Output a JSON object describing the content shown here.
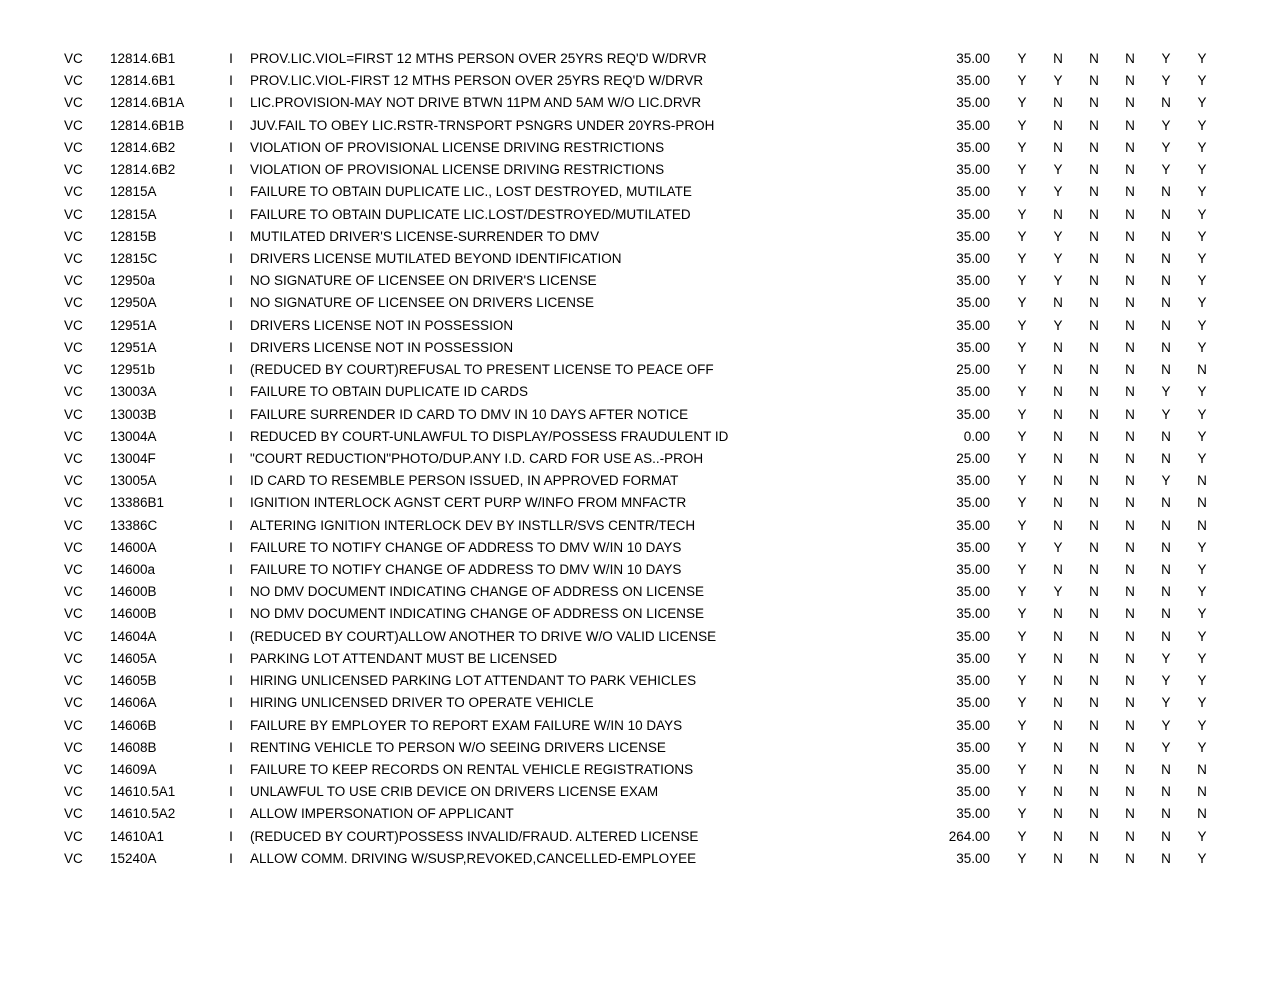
{
  "table": {
    "font_family": "Arial",
    "font_size_pt": 10,
    "text_color": "#000000",
    "background_color": "#ffffff",
    "columns": [
      "statute",
      "section",
      "class",
      "description",
      "amount",
      "f1",
      "f2",
      "f3",
      "f4",
      "f5",
      "f6"
    ],
    "rows": [
      {
        "statute": "VC",
        "section": "12814.6B1",
        "class": "I",
        "description": "PROV.LIC.VIOL=FIRST 12 MTHS PERSON OVER 25YRS REQ'D W/DRVR",
        "amount": "35.00",
        "f1": "Y",
        "f2": "N",
        "f3": "N",
        "f4": "N",
        "f5": "Y",
        "f6": "Y"
      },
      {
        "statute": "VC",
        "section": "12814.6B1",
        "class": "I",
        "description": "PROV.LIC.VIOL-FIRST 12 MTHS PERSON OVER 25YRS REQ'D W/DRVR",
        "amount": "35.00",
        "f1": "Y",
        "f2": "Y",
        "f3": "N",
        "f4": "N",
        "f5": "Y",
        "f6": "Y"
      },
      {
        "statute": "VC",
        "section": "12814.6B1A",
        "class": "I",
        "description": "LIC.PROVISION-MAY NOT DRIVE BTWN 11PM AND 5AM W/O LIC.DRVR",
        "amount": "35.00",
        "f1": "Y",
        "f2": "N",
        "f3": "N",
        "f4": "N",
        "f5": "N",
        "f6": "Y"
      },
      {
        "statute": "VC",
        "section": "12814.6B1B",
        "class": "I",
        "description": "JUV.FAIL TO OBEY LIC.RSTR-TRNSPORT PSNGRS UNDER 20YRS-PROH",
        "amount": "35.00",
        "f1": "Y",
        "f2": "N",
        "f3": "N",
        "f4": "N",
        "f5": "Y",
        "f6": "Y"
      },
      {
        "statute": "VC",
        "section": "12814.6B2",
        "class": "I",
        "description": "VIOLATION OF PROVISIONAL LICENSE DRIVING RESTRICTIONS",
        "amount": "35.00",
        "f1": "Y",
        "f2": "N",
        "f3": "N",
        "f4": "N",
        "f5": "Y",
        "f6": "Y"
      },
      {
        "statute": "VC",
        "section": "12814.6B2",
        "class": "I",
        "description": "VIOLATION OF PROVISIONAL LICENSE DRIVING RESTRICTIONS",
        "amount": "35.00",
        "f1": "Y",
        "f2": "Y",
        "f3": "N",
        "f4": "N",
        "f5": "Y",
        "f6": "Y"
      },
      {
        "statute": "VC",
        "section": "12815A",
        "class": "I",
        "description": "FAILURE TO OBTAIN DUPLICATE LIC., LOST DESTROYED, MUTILATE",
        "amount": "35.00",
        "f1": "Y",
        "f2": "Y",
        "f3": "N",
        "f4": "N",
        "f5": "N",
        "f6": "Y"
      },
      {
        "statute": "VC",
        "section": "12815A",
        "class": "I",
        "description": "FAILURE TO OBTAIN DUPLICATE LIC.LOST/DESTROYED/MUTILATED",
        "amount": "35.00",
        "f1": "Y",
        "f2": "N",
        "f3": "N",
        "f4": "N",
        "f5": "N",
        "f6": "Y"
      },
      {
        "statute": "VC",
        "section": "12815B",
        "class": "I",
        "description": "MUTILATED DRIVER'S LICENSE-SURRENDER TO DMV",
        "amount": "35.00",
        "f1": "Y",
        "f2": "Y",
        "f3": "N",
        "f4": "N",
        "f5": "N",
        "f6": "Y"
      },
      {
        "statute": "VC",
        "section": "12815C",
        "class": "I",
        "description": "DRIVERS LICENSE MUTILATED BEYOND IDENTIFICATION",
        "amount": "35.00",
        "f1": "Y",
        "f2": "Y",
        "f3": "N",
        "f4": "N",
        "f5": "N",
        "f6": "Y"
      },
      {
        "statute": "VC",
        "section": "12950a",
        "class": "I",
        "description": "NO SIGNATURE OF LICENSEE ON DRIVER'S LICENSE",
        "amount": "35.00",
        "f1": "Y",
        "f2": "Y",
        "f3": "N",
        "f4": "N",
        "f5": "N",
        "f6": "Y"
      },
      {
        "statute": "VC",
        "section": "12950A",
        "class": "I",
        "description": "NO SIGNATURE OF LICENSEE ON DRIVERS LICENSE",
        "amount": "35.00",
        "f1": "Y",
        "f2": "N",
        "f3": "N",
        "f4": "N",
        "f5": "N",
        "f6": "Y"
      },
      {
        "statute": "VC",
        "section": "12951A",
        "class": "I",
        "description": "DRIVERS LICENSE NOT IN POSSESSION",
        "amount": "35.00",
        "f1": "Y",
        "f2": "Y",
        "f3": "N",
        "f4": "N",
        "f5": "N",
        "f6": "Y"
      },
      {
        "statute": "VC",
        "section": "12951A",
        "class": "I",
        "description": "DRIVERS LICENSE NOT IN POSSESSION",
        "amount": "35.00",
        "f1": "Y",
        "f2": "N",
        "f3": "N",
        "f4": "N",
        "f5": "N",
        "f6": "Y"
      },
      {
        "statute": "VC",
        "section": "12951b",
        "class": "I",
        "description": "(REDUCED BY COURT)REFUSAL TO PRESENT LICENSE TO PEACE OFF",
        "amount": "25.00",
        "f1": "Y",
        "f2": "N",
        "f3": "N",
        "f4": "N",
        "f5": "N",
        "f6": "N"
      },
      {
        "statute": "VC",
        "section": "13003A",
        "class": "I",
        "description": "FAILURE TO OBTAIN DUPLICATE ID CARDS",
        "amount": "35.00",
        "f1": "Y",
        "f2": "N",
        "f3": "N",
        "f4": "N",
        "f5": "Y",
        "f6": "Y"
      },
      {
        "statute": "VC",
        "section": "13003B",
        "class": "I",
        "description": "FAILURE SURRENDER ID CARD TO DMV IN 10 DAYS AFTER NOTICE",
        "amount": "35.00",
        "f1": "Y",
        "f2": "N",
        "f3": "N",
        "f4": "N",
        "f5": "Y",
        "f6": "Y"
      },
      {
        "statute": "VC",
        "section": "13004A",
        "class": "I",
        "description": "REDUCED BY COURT-UNLAWFUL TO DISPLAY/POSSESS FRAUDULENT ID",
        "amount": "0.00",
        "f1": "Y",
        "f2": "N",
        "f3": "N",
        "f4": "N",
        "f5": "N",
        "f6": "Y"
      },
      {
        "statute": "VC",
        "section": "13004F",
        "class": "I",
        "description": "\"COURT REDUCTION\"PHOTO/DUP.ANY I.D. CARD FOR USE AS..-PROH",
        "amount": "25.00",
        "f1": "Y",
        "f2": "N",
        "f3": "N",
        "f4": "N",
        "f5": "N",
        "f6": "Y"
      },
      {
        "statute": "VC",
        "section": "13005A",
        "class": "I",
        "description": "ID CARD TO RESEMBLE PERSON ISSUED, IN APPROVED FORMAT",
        "amount": "35.00",
        "f1": "Y",
        "f2": "N",
        "f3": "N",
        "f4": "N",
        "f5": "Y",
        "f6": "N"
      },
      {
        "statute": "VC",
        "section": "13386B1",
        "class": "I",
        "description": "IGNITION INTERLOCK AGNST CERT PURP W/INFO FROM MNFACTR",
        "amount": "35.00",
        "f1": "Y",
        "f2": "N",
        "f3": "N",
        "f4": "N",
        "f5": "N",
        "f6": "N"
      },
      {
        "statute": "VC",
        "section": "13386C",
        "class": "I",
        "description": "ALTERING IGNITION INTERLOCK DEV BY INSTLLR/SVS CENTR/TECH",
        "amount": "35.00",
        "f1": "Y",
        "f2": "N",
        "f3": "N",
        "f4": "N",
        "f5": "N",
        "f6": "N"
      },
      {
        "statute": "VC",
        "section": "14600A",
        "class": "I",
        "description": "FAILURE TO NOTIFY CHANGE OF ADDRESS TO DMV W/IN 10 DAYS",
        "amount": "35.00",
        "f1": "Y",
        "f2": "Y",
        "f3": "N",
        "f4": "N",
        "f5": "N",
        "f6": "Y"
      },
      {
        "statute": "VC",
        "section": "14600a",
        "class": "I",
        "description": "FAILURE TO NOTIFY CHANGE OF ADDRESS TO DMV W/IN 10 DAYS",
        "amount": "35.00",
        "f1": "Y",
        "f2": "N",
        "f3": "N",
        "f4": "N",
        "f5": "N",
        "f6": "Y"
      },
      {
        "statute": "VC",
        "section": "14600B",
        "class": "I",
        "description": "NO DMV DOCUMENT INDICATING CHANGE OF ADDRESS ON LICENSE",
        "amount": "35.00",
        "f1": "Y",
        "f2": "Y",
        "f3": "N",
        "f4": "N",
        "f5": "N",
        "f6": "Y"
      },
      {
        "statute": "VC",
        "section": "14600B",
        "class": "I",
        "description": "NO DMV DOCUMENT INDICATING CHANGE OF ADDRESS ON LICENSE",
        "amount": "35.00",
        "f1": "Y",
        "f2": "N",
        "f3": "N",
        "f4": "N",
        "f5": "N",
        "f6": "Y"
      },
      {
        "statute": "VC",
        "section": "14604A",
        "class": "I",
        "description": "(REDUCED BY COURT)ALLOW ANOTHER TO DRIVE W/O VALID LICENSE",
        "amount": "35.00",
        "f1": "Y",
        "f2": "N",
        "f3": "N",
        "f4": "N",
        "f5": "N",
        "f6": "Y"
      },
      {
        "statute": "VC",
        "section": "14605A",
        "class": "I",
        "description": "PARKING LOT ATTENDANT MUST BE LICENSED",
        "amount": "35.00",
        "f1": "Y",
        "f2": "N",
        "f3": "N",
        "f4": "N",
        "f5": "Y",
        "f6": "Y"
      },
      {
        "statute": "VC",
        "section": "14605B",
        "class": "I",
        "description": "HIRING UNLICENSED PARKING LOT ATTENDANT TO PARK VEHICLES",
        "amount": "35.00",
        "f1": "Y",
        "f2": "N",
        "f3": "N",
        "f4": "N",
        "f5": "Y",
        "f6": "Y"
      },
      {
        "statute": "VC",
        "section": "14606A",
        "class": "I",
        "description": "HIRING UNLICENSED DRIVER TO OPERATE VEHICLE",
        "amount": "35.00",
        "f1": "Y",
        "f2": "N",
        "f3": "N",
        "f4": "N",
        "f5": "Y",
        "f6": "Y"
      },
      {
        "statute": "VC",
        "section": "14606B",
        "class": "I",
        "description": "FAILURE BY EMPLOYER TO REPORT EXAM FAILURE W/IN 10 DAYS",
        "amount": "35.00",
        "f1": "Y",
        "f2": "N",
        "f3": "N",
        "f4": "N",
        "f5": "Y",
        "f6": "Y"
      },
      {
        "statute": "VC",
        "section": "14608B",
        "class": "I",
        "description": "RENTING VEHICLE TO PERSON W/O SEEING DRIVERS LICENSE",
        "amount": "35.00",
        "f1": "Y",
        "f2": "N",
        "f3": "N",
        "f4": "N",
        "f5": "Y",
        "f6": "Y"
      },
      {
        "statute": "VC",
        "section": "14609A",
        "class": "I",
        "description": "FAILURE TO KEEP RECORDS ON RENTAL VEHICLE REGISTRATIONS",
        "amount": "35.00",
        "f1": "Y",
        "f2": "N",
        "f3": "N",
        "f4": "N",
        "f5": "N",
        "f6": "N"
      },
      {
        "statute": "VC",
        "section": "14610.5A1",
        "class": "I",
        "description": "UNLAWFUL TO USE CRIB DEVICE ON DRIVERS LICENSE EXAM",
        "amount": "35.00",
        "f1": "Y",
        "f2": "N",
        "f3": "N",
        "f4": "N",
        "f5": "N",
        "f6": "N"
      },
      {
        "statute": "VC",
        "section": "14610.5A2",
        "class": "I",
        "description": "ALLOW IMPERSONATION OF APPLICANT",
        "amount": "35.00",
        "f1": "Y",
        "f2": "N",
        "f3": "N",
        "f4": "N",
        "f5": "N",
        "f6": "N"
      },
      {
        "statute": "VC",
        "section": "14610A1",
        "class": "I",
        "description": "(REDUCED BY COURT)POSSESS INVALID/FRAUD. ALTERED LICENSE",
        "amount": "264.00",
        "f1": "Y",
        "f2": "N",
        "f3": "N",
        "f4": "N",
        "f5": "N",
        "f6": "Y"
      },
      {
        "statute": "VC",
        "section": "15240A",
        "class": "I",
        "description": "ALLOW COMM. DRIVING W/SUSP,REVOKED,CANCELLED-EMPLOYEE",
        "amount": "35.00",
        "f1": "Y",
        "f2": "N",
        "f3": "N",
        "f4": "N",
        "f5": "N",
        "f6": "Y"
      }
    ]
  }
}
